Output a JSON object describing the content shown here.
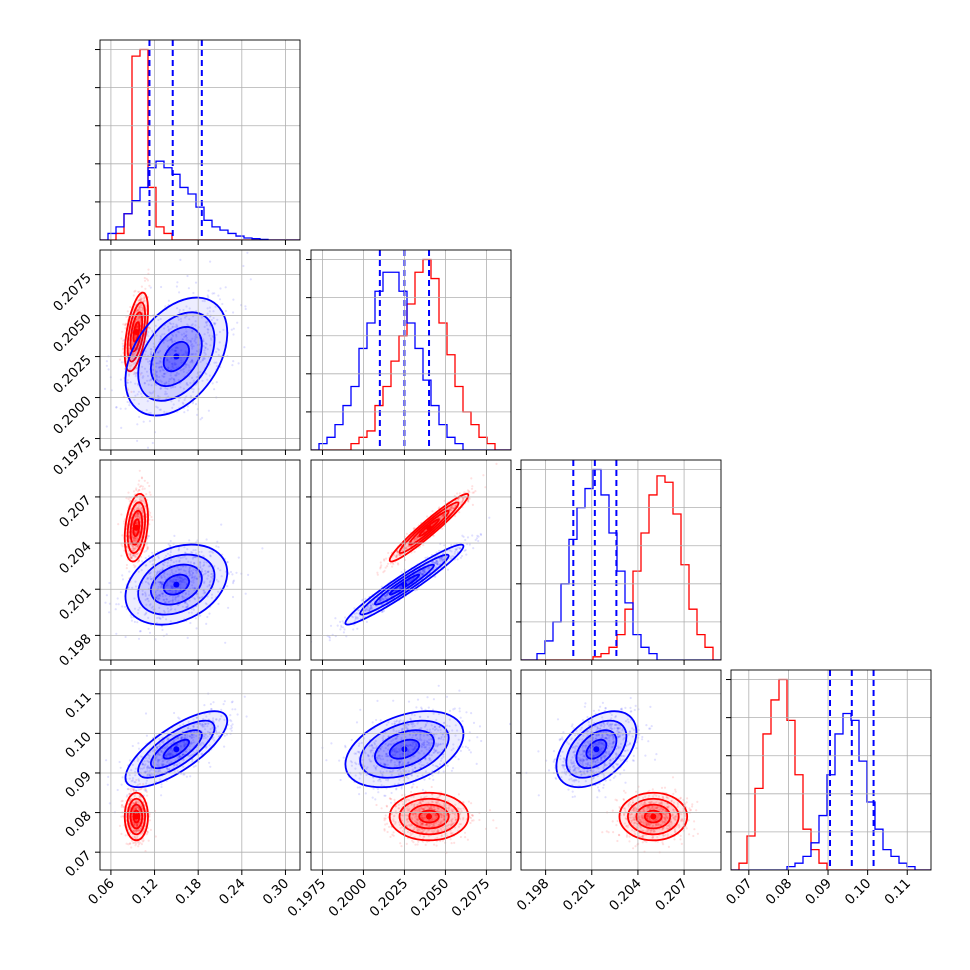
{
  "chart_data": {
    "type": "corner",
    "grid": true,
    "legend": "none",
    "colors": {
      "a": "#ff0000",
      "b": "#0000ff"
    },
    "parameters": [
      {
        "range": [
          0.045,
          0.32
        ],
        "ticks": [
          0.06,
          0.12,
          0.18,
          0.24,
          0.3
        ],
        "tick_labels": [
          "0.06",
          "0.12",
          "0.18",
          "0.24",
          "0.30"
        ]
      },
      {
        "range": [
          0.1968,
          0.209
        ],
        "ticks": [
          0.1975,
          0.2,
          0.2025,
          0.205,
          0.2075
        ],
        "tick_labels": [
          "0.1975",
          "0.2000",
          "0.2025",
          "0.2050",
          "0.2075"
        ]
      },
      {
        "range": [
          0.1964,
          0.2094
        ],
        "ticks": [
          0.198,
          0.201,
          0.204,
          0.207
        ],
        "tick_labels": [
          "0.198",
          "0.201",
          "0.204",
          "0.207"
        ]
      },
      {
        "range": [
          0.0655,
          0.116
        ],
        "ticks": [
          0.07,
          0.08,
          0.09,
          0.1,
          0.11
        ],
        "tick_labels": [
          "0.07",
          "0.08",
          "0.09",
          "0.10",
          "0.11"
        ]
      }
    ],
    "quantiles_b": [
      [
        0.113,
        0.145,
        0.185
      ],
      [
        0.201,
        0.2025,
        0.204
      ],
      [
        0.1998,
        0.2012,
        0.2026
      ],
      [
        0.0905,
        0.096,
        0.1015
      ]
    ],
    "series": [
      {
        "color": "#ff0000",
        "mean": [
          0.095,
          0.204,
          0.205,
          0.079
        ],
        "std": [
          0.008,
          0.0012,
          0.0011,
          0.003
        ],
        "corr": [
          [
            0,
            1,
            0.55
          ],
          [
            1,
            2,
            0.96
          ],
          [
            0,
            2,
            0.3
          ]
        ]
      },
      {
        "color": "#0000ff",
        "mean": [
          0.15,
          0.2025,
          0.2013,
          0.096
        ],
        "std": [
          0.035,
          0.0018,
          0.0013,
          0.0048
        ],
        "corr": [
          [
            0,
            1,
            0.4
          ],
          [
            0,
            2,
            0.3
          ],
          [
            0,
            3,
            0.75
          ],
          [
            1,
            2,
            0.96
          ],
          [
            1,
            3,
            0.4
          ],
          [
            2,
            3,
            0.45
          ]
        ]
      }
    ],
    "histograms": [
      {
        "bins": [
          0.045,
          0.32,
          25
        ],
        "series": [
          {
            "color": "#ff0000",
            "counts": [
              0,
              0,
              1,
              4,
              28,
              29,
              8,
              2,
              1,
              0,
              0,
              0,
              0,
              0,
              0,
              0,
              0,
              0,
              0,
              0,
              0,
              0,
              0,
              0,
              0
            ]
          },
          {
            "color": "#0000ff",
            "counts": [
              0,
              1,
              2,
              4,
              6,
              8,
              11,
              12,
              11,
              10,
              8,
              7,
              5,
              3,
              2,
              1.5,
              1,
              0.6,
              0.3,
              0.2,
              0.1,
              0,
              0,
              0,
              0
            ]
          }
        ]
      },
      {
        "bins": [
          0.1968,
          0.209,
          25
        ],
        "series": [
          {
            "color": "#ff0000",
            "counts": [
              0,
              0,
              0,
              0,
              0,
              1,
              2,
              3,
              7,
              10,
              14,
              18,
              23,
              28,
              30,
              27,
              20,
              15,
              10,
              6,
              4,
              2,
              1,
              0,
              0
            ]
          },
          {
            "color": "#0000ff",
            "counts": [
              0,
              1,
              2,
              4,
              7,
              10,
              16,
              20,
              25,
              28,
              28,
              25,
              20,
              16,
              11,
              7,
              4,
              2,
              1,
              0,
              0,
              0,
              0,
              0,
              0
            ]
          }
        ]
      },
      {
        "bins": [
          0.1964,
          0.2094,
          25
        ],
        "series": [
          {
            "color": "#ff0000",
            "counts": [
              0,
              0,
              0,
              0,
              0,
              0,
              0,
              0,
              0,
              0.5,
              1,
              2,
              4,
              8,
              14,
              20,
              26,
              29,
              28,
              23,
              15,
              8,
              4,
              2,
              0
            ]
          },
          {
            "color": "#0000ff",
            "counts": [
              0,
              0,
              1,
              3,
              6,
              12,
              19,
              24,
              27,
              30,
              26,
              20,
              14,
              9,
              4,
              2,
              1,
              0,
              0,
              0,
              0,
              0,
              0,
              0,
              0
            ]
          }
        ]
      },
      {
        "bins": [
          0.0655,
          0.116,
          25
        ],
        "series": [
          {
            "color": "#ff0000",
            "counts": [
              0,
              1,
              5,
              12,
              20,
              25,
              28,
              22,
              14,
              6,
              3,
              1,
              0,
              0,
              0,
              0,
              0,
              0,
              0,
              0,
              0,
              0,
              0,
              0,
              0
            ]
          },
          {
            "color": "#0000ff",
            "counts": [
              0,
              0,
              0,
              0,
              0,
              0,
              0,
              0.5,
              1,
              2,
              4,
              8,
              14,
              20,
              23,
              22,
              16,
              10,
              6,
              3,
              2,
              1,
              0.5,
              0,
              0
            ]
          }
        ]
      }
    ]
  }
}
